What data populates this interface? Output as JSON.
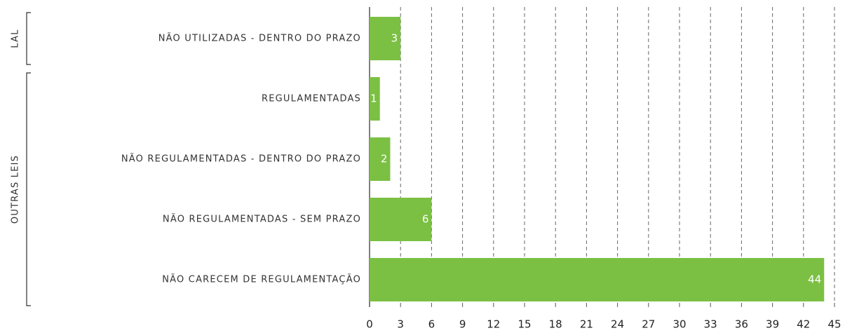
{
  "chart_data": {
    "type": "bar",
    "orientation": "horizontal",
    "color": "#7bc043",
    "groups": [
      {
        "name": "LAL",
        "categories": [
          "NÃO UTILIZADAS - DENTRO DO PRAZO"
        ],
        "values": [
          3
        ]
      },
      {
        "name": "OUTRAS LEIS",
        "categories": [
          "REGULAMENTADAS",
          "NÃO REGULAMENTADAS - DENTRO DO PRAZO",
          "NÃO REGULAMENTADAS - SEM PRAZO",
          "NÃO CARECEM DE REGULAMENTAÇÃO"
        ],
        "values": [
          1,
          2,
          6,
          44
        ]
      }
    ],
    "xlim": [
      0,
      45
    ],
    "xticks": [
      0,
      3,
      6,
      9,
      12,
      15,
      18,
      21,
      24,
      27,
      30,
      33,
      36,
      39,
      42,
      45
    ],
    "grid": true
  }
}
